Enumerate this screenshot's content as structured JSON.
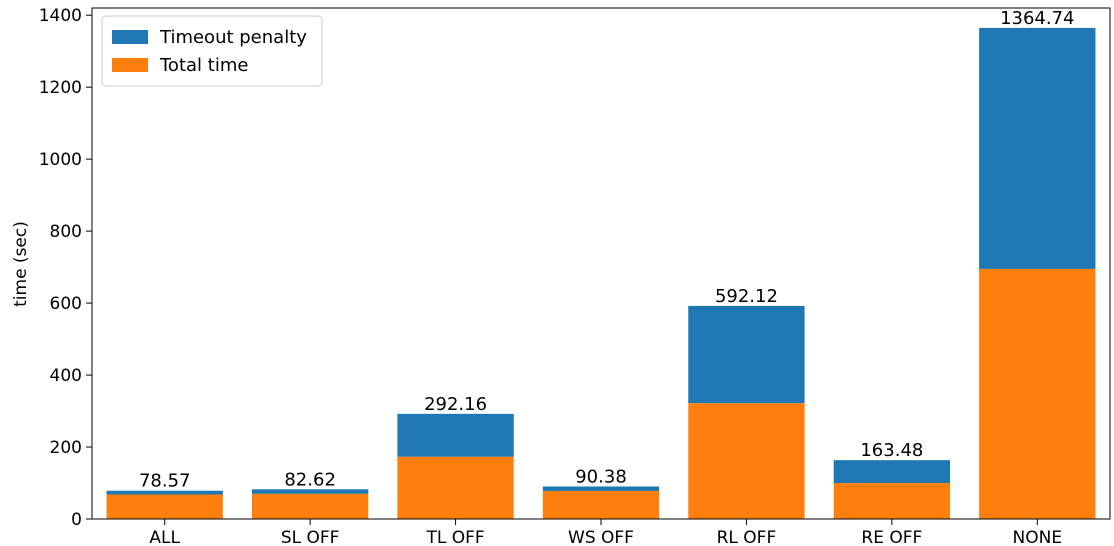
{
  "chart_data": {
    "type": "bar",
    "stacked": true,
    "categories": [
      "ALL",
      "SL OFF",
      "TL OFF",
      "WS OFF",
      "RL OFF",
      "RE OFF",
      "NONE"
    ],
    "series": [
      {
        "name": "Total time",
        "color": "#ff7f0e",
        "values": [
          68,
          70,
          173,
          78,
          322,
          100,
          695
        ]
      },
      {
        "name": "Timeout penalty",
        "color": "#1f77b4",
        "values": [
          10.57,
          12.62,
          119.16,
          12.38,
          270.12,
          63.48,
          669.74
        ]
      }
    ],
    "totals": [
      78.57,
      82.62,
      292.16,
      90.38,
      592.12,
      163.48,
      1364.74
    ],
    "total_labels": [
      "78.57",
      "82.62",
      "292.16",
      "90.38",
      "592.12",
      "163.48",
      "1364.74"
    ],
    "ylabel": "time (sec)",
    "xlabel": "",
    "title": "",
    "ylim": [
      0,
      1420
    ],
    "yticks": [
      0,
      200,
      400,
      600,
      800,
      1000,
      1200,
      1400
    ],
    "ytick_labels": [
      "0",
      "200",
      "400",
      "600",
      "800",
      "1000",
      "1200",
      "1400"
    ],
    "legend": {
      "placement": "top-left",
      "entries": [
        {
          "label": "Timeout penalty",
          "color": "#1f77b4"
        },
        {
          "label": "Total time",
          "color": "#ff7f0e"
        }
      ]
    },
    "grid": false
  }
}
